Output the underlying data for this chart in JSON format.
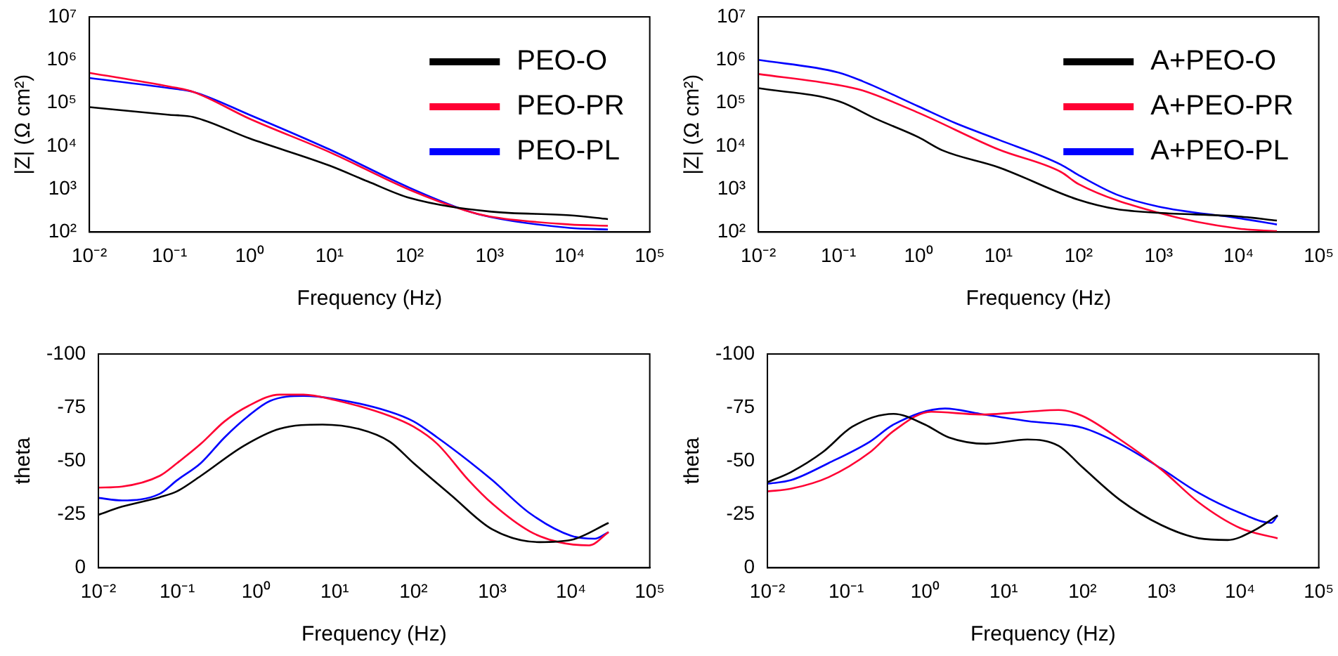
{
  "chart_data": [
    {
      "type": "line",
      "xlabel": "Frequency (Hz)",
      "ylabel": "|Z| (Ω cm²)",
      "log": "xy",
      "xlim": [
        0.01,
        100000
      ],
      "ylim": [
        100,
        10000000
      ],
      "xticks": [
        {
          "value": 0.01,
          "label": "10⁻²"
        },
        {
          "value": 0.1,
          "label": "10⁻¹"
        },
        {
          "value": 1,
          "label": "10⁰"
        },
        {
          "value": 10,
          "label": "10¹"
        },
        {
          "value": 100,
          "label": "10²"
        },
        {
          "value": 1000,
          "label": "10³"
        },
        {
          "value": 10000,
          "label": "10⁴"
        },
        {
          "value": 100000,
          "label": "10⁵"
        }
      ],
      "yticks": [
        {
          "value": 100,
          "label": "10²"
        },
        {
          "value": 1000,
          "label": "10³"
        },
        {
          "value": 10000,
          "label": "10⁴"
        },
        {
          "value": 100000,
          "label": "10⁵"
        },
        {
          "value": 1000000,
          "label": "10⁶"
        },
        {
          "value": 10000000,
          "label": "10⁷"
        }
      ],
      "grid": false,
      "legend": "top right",
      "marker": "none",
      "line_style": "solid",
      "series": [
        {
          "name": "PEO-O",
          "color": "#000000",
          "x": [
            0.01,
            0.1,
            0.2,
            1,
            10,
            30,
            100,
            1000,
            10000,
            30000
          ],
          "values": [
            80000,
            53000,
            47000,
            15000,
            3500,
            1500,
            620,
            300,
            245,
            200
          ]
        },
        {
          "name": "PEO-PR",
          "color": "#ff0033",
          "x": [
            0.01,
            0.1,
            0.2,
            1,
            10,
            100,
            500,
            1000,
            10000,
            30000
          ],
          "values": [
            500000,
            240000,
            180000,
            43000,
            7200,
            960,
            316,
            230,
            150,
            140
          ]
        },
        {
          "name": "PEO-PL",
          "color": "#0000ff",
          "x": [
            0.01,
            0.1,
            0.2,
            1,
            10,
            100,
            500,
            1000,
            10000,
            30000
          ],
          "values": [
            380000,
            220000,
            180000,
            53000,
            8300,
            1070,
            320,
            225,
            125,
            115
          ]
        }
      ]
    },
    {
      "type": "line",
      "xlabel": "Frequency (Hz)",
      "ylabel": "|Z| (Ω cm²)",
      "log": "xy",
      "xlim": [
        0.01,
        100000
      ],
      "ylim": [
        100,
        10000000
      ],
      "xticks": [
        {
          "value": 0.01,
          "label": "10⁻²"
        },
        {
          "value": 0.1,
          "label": "10⁻¹"
        },
        {
          "value": 1,
          "label": "10⁰"
        },
        {
          "value": 10,
          "label": "10¹"
        },
        {
          "value": 100,
          "label": "10²"
        },
        {
          "value": 1000,
          "label": "10³"
        },
        {
          "value": 10000,
          "label": "10⁴"
        },
        {
          "value": 100000,
          "label": "10⁵"
        }
      ],
      "yticks": [
        {
          "value": 100,
          "label": "10²"
        },
        {
          "value": 1000,
          "label": "10³"
        },
        {
          "value": 10000,
          "label": "10⁴"
        },
        {
          "value": 100000,
          "label": "10⁵"
        },
        {
          "value": 1000000,
          "label": "10⁶"
        },
        {
          "value": 10000000,
          "label": "10⁷"
        }
      ],
      "grid": false,
      "legend": "top right",
      "marker": "none",
      "line_style": "solid",
      "series": [
        {
          "name": "A+PEO-O",
          "color": "#000000",
          "x": [
            0.01,
            0.1,
            0.3,
            1,
            2,
            10,
            100,
            300,
            1000,
            10000,
            30000
          ],
          "values": [
            220000,
            110000,
            42000,
            16000,
            7900,
            3200,
            560,
            340,
            280,
            230,
            185
          ]
        },
        {
          "name": "A+PEO-PR",
          "color": "#ff0033",
          "x": [
            0.01,
            0.1,
            0.2,
            1,
            10,
            60,
            100,
            1000,
            10000,
            30000
          ],
          "values": [
            470000,
            260000,
            195000,
            59000,
            8300,
            2500,
            1300,
            280,
            120,
            105
          ]
        },
        {
          "name": "A+PEO-PL",
          "color": "#0000ff",
          "x": [
            0.01,
            0.1,
            0.2,
            1,
            3,
            10,
            60,
            100,
            300,
            1000,
            10000,
            30000
          ],
          "values": [
            1000000,
            510000,
            320000,
            83000,
            33000,
            14000,
            3700,
            2100,
            740,
            390,
            210,
            150
          ]
        }
      ]
    },
    {
      "type": "line",
      "xlabel": "Frequency (Hz)",
      "ylabel": "theta",
      "log": "x",
      "xlim": [
        0.01,
        100000
      ],
      "ylim": [
        0,
        -100
      ],
      "xticks": [
        {
          "value": 0.01,
          "label": "10⁻²"
        },
        {
          "value": 0.1,
          "label": "10⁻¹"
        },
        {
          "value": 1,
          "label": "10⁰"
        },
        {
          "value": 10,
          "label": "10¹"
        },
        {
          "value": 100,
          "label": "10²"
        },
        {
          "value": 1000,
          "label": "10³"
        },
        {
          "value": 10000,
          "label": "10⁴"
        },
        {
          "value": 100000,
          "label": "10⁵"
        }
      ],
      "yticks": [
        0,
        -25,
        -50,
        -75,
        -100
      ],
      "grid": false,
      "marker": "none",
      "line_style": "solid",
      "series": [
        {
          "color": "#000000",
          "x": [
            0.01,
            0.02,
            0.06,
            0.1,
            0.2,
            0.7,
            2,
            7,
            20,
            50,
            100,
            300,
            1000,
            4000,
            10000,
            30000
          ],
          "values": [
            -24.8,
            -28.6,
            -33,
            -35.8,
            -43,
            -57,
            -65,
            -67,
            -65,
            -59,
            -49,
            -34,
            -18,
            -12,
            -13,
            -21
          ]
        },
        {
          "color": "#ff0033",
          "x": [
            0.01,
            0.02,
            0.06,
            0.1,
            0.2,
            0.4,
            0.8,
            2,
            4,
            10,
            50,
            100,
            200,
            500,
            1000,
            3000,
            7000,
            17000,
            30000
          ],
          "values": [
            -37.5,
            -38,
            -43,
            -49,
            -58,
            -68.5,
            -75.7,
            -81,
            -81,
            -78.5,
            -71,
            -66,
            -58,
            -41,
            -30,
            -17,
            -12,
            -10.5,
            -16.7
          ]
        },
        {
          "color": "#0000ff",
          "x": [
            0.01,
            0.02,
            0.06,
            0.1,
            0.2,
            0.4,
            0.8,
            1.5,
            4,
            10,
            50,
            100,
            200,
            500,
            1000,
            3000,
            10000,
            20000,
            30000
          ],
          "values": [
            -32.7,
            -31.5,
            -34.6,
            -41,
            -49,
            -61,
            -71,
            -78,
            -80.4,
            -79,
            -73,
            -68.5,
            -61,
            -50,
            -41,
            -25.5,
            -15,
            -13.6,
            -16.7
          ]
        }
      ]
    },
    {
      "type": "line",
      "xlabel": "Frequency (Hz)",
      "ylabel": "theta",
      "log": "x",
      "xlim": [
        0.01,
        100000
      ],
      "ylim": [
        0,
        -100
      ],
      "xticks": [
        {
          "value": 0.01,
          "label": "10⁻²"
        },
        {
          "value": 0.1,
          "label": "10⁻¹"
        },
        {
          "value": 1,
          "label": "10⁰"
        },
        {
          "value": 10,
          "label": "10¹"
        },
        {
          "value": 100,
          "label": "10²"
        },
        {
          "value": 1000,
          "label": "10³"
        },
        {
          "value": 10000,
          "label": "10⁴"
        },
        {
          "value": 100000,
          "label": "10⁵"
        }
      ],
      "yticks": [
        0,
        -25,
        -50,
        -75,
        -100
      ],
      "grid": false,
      "marker": "none",
      "line_style": "solid",
      "series": [
        {
          "color": "#000000",
          "x": [
            0.01,
            0.02,
            0.05,
            0.12,
            0.4,
            1,
            2,
            6,
            20,
            50,
            100,
            300,
            1000,
            3000,
            7000,
            15000,
            30000
          ],
          "values": [
            -40,
            -44.8,
            -54,
            -66,
            -72,
            -67,
            -61,
            -58,
            -60,
            -57,
            -47,
            -31.7,
            -20,
            -13.8,
            -13,
            -17.4,
            -24.5
          ]
        },
        {
          "color": "#ff0033",
          "x": [
            0.01,
            0.02,
            0.06,
            0.2,
            0.4,
            1.2,
            5,
            20,
            50,
            100,
            300,
            1000,
            3000,
            10000,
            30000
          ],
          "values": [
            -35.7,
            -37,
            -42.4,
            -54,
            -64,
            -73,
            -71.7,
            -73,
            -73.8,
            -71,
            -60,
            -46,
            -30.5,
            -18.6,
            -13.8
          ]
        },
        {
          "color": "#0000ff",
          "x": [
            0.01,
            0.02,
            0.06,
            0.2,
            0.4,
            1.8,
            5,
            20,
            100,
            300,
            1000,
            3000,
            10000,
            25000,
            30000
          ],
          "values": [
            -39.3,
            -41,
            -49,
            -59,
            -67,
            -74.5,
            -72,
            -68.6,
            -65.5,
            -57.9,
            -46.4,
            -35,
            -25.7,
            -21,
            -24.5
          ]
        }
      ]
    }
  ]
}
